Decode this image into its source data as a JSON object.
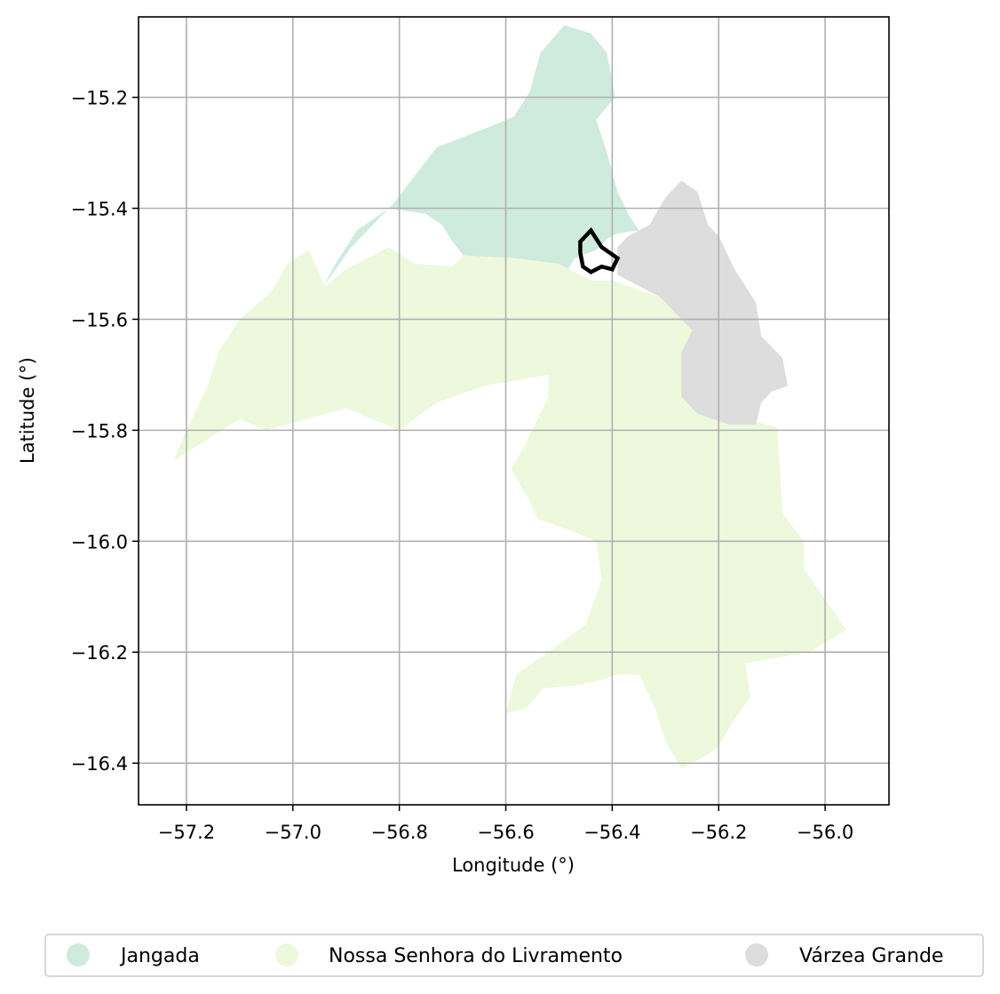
{
  "map": {
    "xlabel": "Longitude (°)",
    "ylabel": "Latitude (°)",
    "xlim": [
      -57.29,
      -55.88
    ],
    "ylim": [
      -16.475,
      -15.055
    ],
    "grid": true,
    "x_ticks": [
      -57.2,
      -57.0,
      -56.8,
      -56.6,
      -56.4,
      -56.2,
      -56.0
    ],
    "y_ticks": [
      -15.2,
      -15.4,
      -15.6,
      -15.8,
      -16.0,
      -16.2,
      -16.4
    ],
    "x_tick_labels": [
      "−57.2",
      "−57.0",
      "−56.8",
      "−56.6",
      "−56.4",
      "−56.2",
      "−56.0"
    ],
    "y_tick_labels": [
      "−15.2",
      "−15.4",
      "−15.6",
      "−15.8",
      "−16.0",
      "−16.2",
      "−16.4"
    ],
    "legend_position": "bottom-center",
    "regions": [
      {
        "name": "Jangada",
        "color": "#cfebdd",
        "polygon": [
          [
            -56.943,
            -15.541
          ],
          [
            -56.89,
            -15.47
          ],
          [
            -56.81,
            -15.39
          ],
          [
            -56.73,
            -15.29
          ],
          [
            -56.635,
            -15.255
          ],
          [
            -56.585,
            -15.235
          ],
          [
            -56.555,
            -15.19
          ],
          [
            -56.535,
            -15.12
          ],
          [
            -56.49,
            -15.07
          ],
          [
            -56.44,
            -15.085
          ],
          [
            -56.41,
            -15.12
          ],
          [
            -56.4,
            -15.17
          ],
          [
            -56.395,
            -15.2
          ],
          [
            -56.43,
            -15.24
          ],
          [
            -56.41,
            -15.3
          ],
          [
            -56.39,
            -15.37
          ],
          [
            -56.37,
            -15.41
          ],
          [
            -56.35,
            -15.44
          ],
          [
            -56.39,
            -15.445
          ],
          [
            -56.41,
            -15.455
          ],
          [
            -56.43,
            -15.475
          ],
          [
            -56.47,
            -15.49
          ],
          [
            -56.49,
            -15.52
          ],
          [
            -56.5,
            -15.55
          ],
          [
            -56.53,
            -15.555
          ],
          [
            -56.545,
            -15.535
          ],
          [
            -56.58,
            -15.49
          ],
          [
            -56.68,
            -15.485
          ],
          [
            -56.7,
            -15.46
          ],
          [
            -56.72,
            -15.43
          ],
          [
            -56.75,
            -15.41
          ],
          [
            -56.82,
            -15.4
          ],
          [
            -56.88,
            -15.44
          ],
          [
            -56.92,
            -15.5
          ],
          [
            -56.943,
            -15.541
          ]
        ]
      },
      {
        "name": "Nossa Senhora do Livramento",
        "color": "#eef8dc",
        "polygon": [
          [
            -57.225,
            -15.855
          ],
          [
            -57.2,
            -15.8
          ],
          [
            -57.16,
            -15.72
          ],
          [
            -57.14,
            -15.66
          ],
          [
            -57.1,
            -15.6
          ],
          [
            -57.04,
            -15.55
          ],
          [
            -57.01,
            -15.5
          ],
          [
            -56.97,
            -15.475
          ],
          [
            -56.94,
            -15.54
          ],
          [
            -56.9,
            -15.51
          ],
          [
            -56.82,
            -15.47
          ],
          [
            -56.77,
            -15.5
          ],
          [
            -56.7,
            -15.505
          ],
          [
            -56.68,
            -15.485
          ],
          [
            -56.58,
            -15.49
          ],
          [
            -56.5,
            -15.5
          ],
          [
            -56.44,
            -15.53
          ],
          [
            -56.4,
            -15.53
          ],
          [
            -56.31,
            -15.56
          ],
          [
            -56.21,
            -15.62
          ],
          [
            -56.24,
            -15.68
          ],
          [
            -56.23,
            -15.74
          ],
          [
            -56.165,
            -15.775
          ],
          [
            -56.09,
            -15.795
          ],
          [
            -56.08,
            -15.95
          ],
          [
            -56.04,
            -16.0
          ],
          [
            -56.04,
            -16.05
          ],
          [
            -55.96,
            -16.16
          ],
          [
            -56.03,
            -16.2
          ],
          [
            -56.15,
            -16.22
          ],
          [
            -56.14,
            -16.28
          ],
          [
            -56.17,
            -16.32
          ],
          [
            -56.2,
            -16.37
          ],
          [
            -56.23,
            -16.39
          ],
          [
            -56.27,
            -16.41
          ],
          [
            -56.3,
            -16.36
          ],
          [
            -56.32,
            -16.3
          ],
          [
            -56.35,
            -16.24
          ],
          [
            -56.39,
            -16.24
          ],
          [
            -56.42,
            -16.25
          ],
          [
            -56.47,
            -16.26
          ],
          [
            -56.53,
            -16.265
          ],
          [
            -56.56,
            -16.3
          ],
          [
            -56.6,
            -16.31
          ],
          [
            -56.58,
            -16.24
          ],
          [
            -56.52,
            -16.2
          ],
          [
            -56.45,
            -16.15
          ],
          [
            -56.42,
            -16.07
          ],
          [
            -56.43,
            -16.0
          ],
          [
            -56.48,
            -15.98
          ],
          [
            -56.54,
            -15.96
          ],
          [
            -56.56,
            -15.92
          ],
          [
            -56.59,
            -15.87
          ],
          [
            -56.56,
            -15.82
          ],
          [
            -56.52,
            -15.74
          ],
          [
            -56.52,
            -15.7
          ],
          [
            -56.64,
            -15.72
          ],
          [
            -56.73,
            -15.75
          ],
          [
            -56.8,
            -15.8
          ],
          [
            -56.9,
            -15.76
          ],
          [
            -57.05,
            -15.8
          ],
          [
            -57.1,
            -15.78
          ],
          [
            -57.225,
            -15.855
          ]
        ]
      },
      {
        "name": "Várzea Grande",
        "color": "#dddddd",
        "polygon": [
          [
            -56.37,
            -15.45
          ],
          [
            -56.33,
            -15.43
          ],
          [
            -56.3,
            -15.38
          ],
          [
            -56.27,
            -15.35
          ],
          [
            -56.24,
            -15.37
          ],
          [
            -56.22,
            -15.43
          ],
          [
            -56.2,
            -15.45
          ],
          [
            -56.17,
            -15.51
          ],
          [
            -56.15,
            -15.54
          ],
          [
            -56.13,
            -15.57
          ],
          [
            -56.12,
            -15.63
          ],
          [
            -56.08,
            -15.67
          ],
          [
            -56.07,
            -15.72
          ],
          [
            -56.1,
            -15.73
          ],
          [
            -56.12,
            -15.75
          ],
          [
            -56.13,
            -15.79
          ],
          [
            -56.18,
            -15.79
          ],
          [
            -56.24,
            -15.77
          ],
          [
            -56.27,
            -15.74
          ],
          [
            -56.27,
            -15.69
          ],
          [
            -56.27,
            -15.66
          ],
          [
            -56.25,
            -15.62
          ],
          [
            -56.31,
            -15.56
          ],
          [
            -56.39,
            -15.52
          ],
          [
            -56.39,
            -15.47
          ],
          [
            -56.37,
            -15.45
          ]
        ]
      }
    ],
    "highlight": {
      "stroke": "#000000",
      "polygon": [
        [
          -56.44,
          -15.44
        ],
        [
          -56.42,
          -15.47
        ],
        [
          -56.39,
          -15.49
        ],
        [
          -56.4,
          -15.51
        ],
        [
          -56.42,
          -15.505
        ],
        [
          -56.44,
          -15.515
        ],
        [
          -56.455,
          -15.505
        ],
        [
          -56.46,
          -15.48
        ],
        [
          -56.46,
          -15.46
        ],
        [
          -56.44,
          -15.44
        ]
      ]
    },
    "legend": [
      {
        "label": "Jangada",
        "color": "#cfebdd"
      },
      {
        "label": "Nossa Senhora do Livramento",
        "color": "#eef8dc"
      },
      {
        "label": "Várzea Grande",
        "color": "#dddddd"
      }
    ]
  }
}
